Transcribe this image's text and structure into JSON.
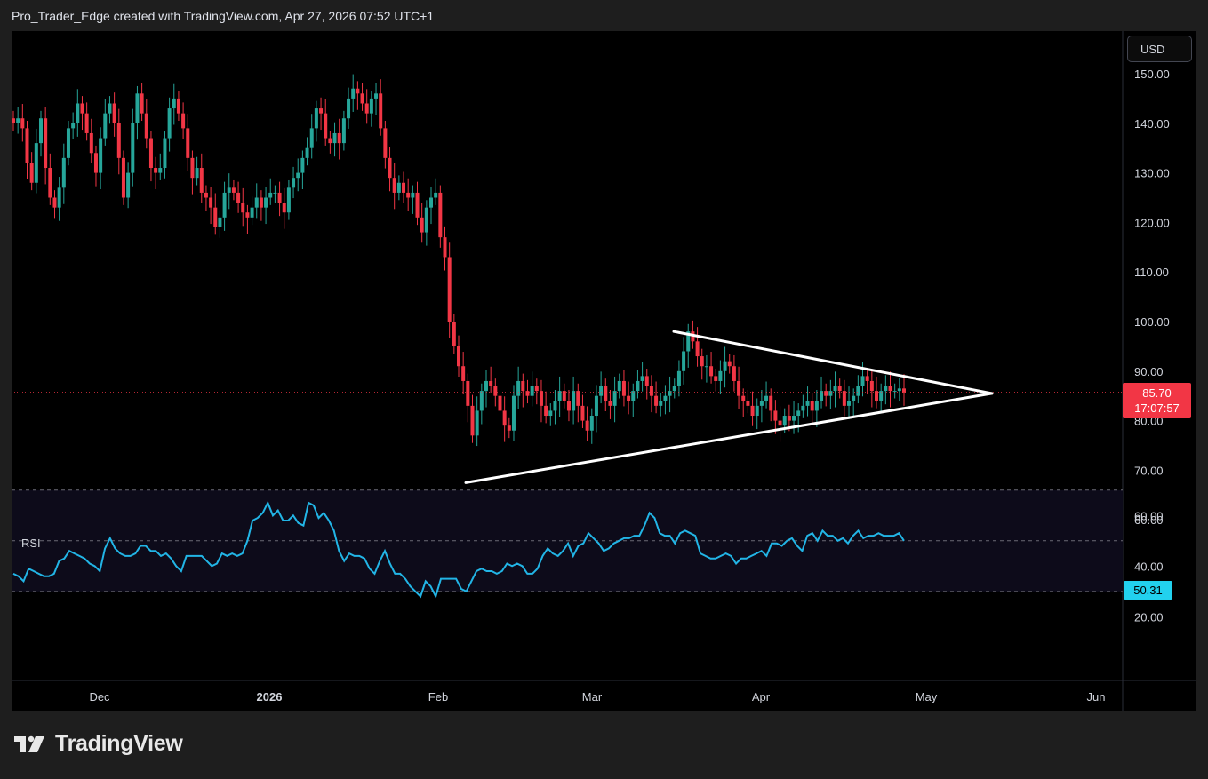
{
  "header": {
    "attribution": "Pro_Trader_Edge created with TradingView.com, Apr 27, 2026 07:52 UTC+1"
  },
  "toolbar": {
    "currency_label": "USD"
  },
  "price_badge": {
    "price": "85.70",
    "countdown": "17:07:57"
  },
  "rsi_badge": {
    "value": "50.31"
  },
  "rsi_label": "RSI",
  "logo": {
    "text": "TradingView",
    "icon": "tradingview-logo-icon"
  },
  "colors": {
    "up": "#26a69a",
    "down": "#f23645",
    "rsi_line": "#22b5e6",
    "trendline": "#ffffff",
    "current_price_line": "#f23645"
  },
  "chart_data": [
    {
      "type": "candlestick",
      "x_axis_labels": [
        "Dec",
        "2026",
        "Feb",
        "Mar",
        "Apr",
        "May",
        "Jun"
      ],
      "y_axis_labels": [
        "150.00",
        "140.00",
        "130.00",
        "120.00",
        "110.00",
        "100.00",
        "90.00",
        "80.00",
        "70.00",
        "60.00"
      ],
      "ylim": [
        58,
        153
      ],
      "current_price": 85.7,
      "closes": [
        140,
        141,
        139,
        132,
        128,
        136,
        141,
        131,
        125,
        123,
        127,
        133,
        139,
        140,
        144,
        142,
        138,
        134,
        130,
        137,
        142,
        144,
        140,
        133,
        125,
        130,
        140,
        146,
        142,
        137,
        131,
        130,
        131,
        137,
        143,
        145,
        142,
        139,
        133,
        129,
        131,
        126,
        125,
        123,
        119,
        121,
        126,
        127,
        126,
        124,
        122,
        121,
        123,
        125,
        123,
        125,
        126,
        126,
        124,
        122,
        127,
        129,
        130,
        133,
        135,
        139,
        143,
        142,
        137,
        136,
        138,
        136,
        141,
        145,
        147,
        146,
        144,
        142,
        145,
        146,
        139,
        133,
        129,
        126,
        128,
        126,
        125,
        126,
        121,
        118,
        123,
        125,
        126,
        117,
        113,
        100,
        95,
        91,
        88,
        83,
        77,
        82,
        86,
        88,
        87,
        85,
        82,
        79,
        78,
        85,
        88,
        86,
        85,
        87,
        86,
        83,
        81,
        82,
        84,
        86,
        84,
        82,
        86,
        83,
        80,
        78,
        81,
        85,
        87,
        84,
        83,
        86,
        88,
        85,
        84,
        86,
        88,
        89,
        87,
        85,
        83,
        84,
        85,
        86,
        87,
        90,
        94,
        98,
        96,
        93,
        91,
        91,
        89,
        88,
        90,
        92,
        91,
        88,
        85,
        84,
        83,
        81,
        83,
        84,
        85,
        82,
        80,
        79,
        81,
        80,
        81,
        82,
        83,
        84,
        82,
        84,
        86,
        85,
        86,
        87,
        86,
        83,
        84,
        85,
        87,
        89,
        88,
        86,
        84,
        86,
        87,
        86,
        86,
        86.5,
        85.7
      ],
      "trendlines": [
        {
          "from": {
            "date": "Feb 6",
            "price": 67.5
          },
          "to": {
            "date": "May 13",
            "price": 85.5
          }
        },
        {
          "from": {
            "date": "Mar 16",
            "price": 98
          },
          "to": {
            "date": "May 13",
            "price": 85.5
          }
        }
      ]
    },
    {
      "type": "line",
      "series": [
        {
          "name": "RSI",
          "values": [
            37,
            36,
            34,
            39,
            38,
            37,
            36,
            36,
            37,
            42,
            43,
            46,
            45,
            44,
            43,
            41,
            40,
            38,
            47,
            51,
            47,
            45,
            44,
            44,
            45,
            48,
            48,
            46,
            46,
            44,
            45,
            43,
            40,
            38,
            44,
            44,
            44,
            44,
            42,
            40,
            41,
            45,
            44,
            45,
            44,
            45,
            50,
            58,
            59,
            61,
            65,
            60,
            62,
            58,
            58,
            60,
            57,
            56,
            65,
            64,
            59,
            61,
            58,
            54,
            46,
            42,
            45,
            44,
            44,
            43,
            39,
            37,
            42,
            46,
            41,
            37,
            37,
            35,
            32,
            30,
            28,
            34,
            32,
            28,
            35,
            35,
            35,
            35,
            31,
            30,
            34,
            38,
            39,
            38,
            38,
            37,
            38,
            41,
            40,
            41,
            40,
            37,
            37,
            39,
            44,
            47,
            45,
            44,
            46,
            49,
            44,
            48,
            49,
            53,
            51,
            49,
            46,
            47,
            49,
            50,
            51,
            51,
            52,
            52,
            56,
            61,
            59,
            53,
            52,
            52,
            49,
            53,
            54,
            53,
            52,
            45,
            44,
            43,
            43,
            44,
            45,
            44,
            41,
            43,
            43,
            44,
            45,
            46,
            44,
            49,
            49,
            48,
            50,
            51,
            48,
            46,
            52,
            53,
            50,
            54,
            52,
            52,
            50,
            51,
            49,
            52,
            54,
            51,
            52,
            52,
            53,
            52,
            52,
            52,
            53,
            50
          ]
        }
      ],
      "y_axis_labels": [
        "60.00",
        "40.00",
        "20.00"
      ],
      "ylim": [
        15,
        70
      ],
      "reference_levels": [
        70,
        50,
        30
      ]
    }
  ]
}
